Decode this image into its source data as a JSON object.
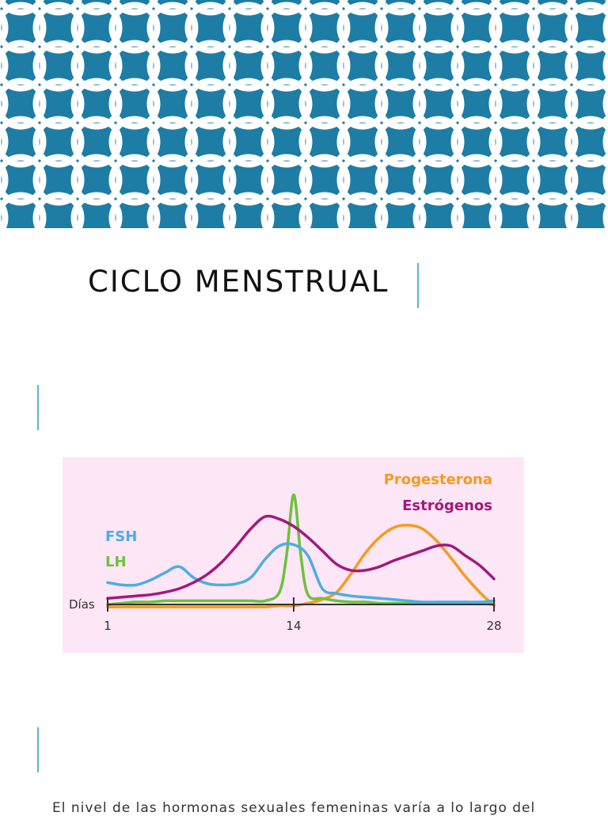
{
  "slide": {
    "title": "CICLO MENSTRUAL",
    "body_text": "El nivel de las hormonas sexuales femeninas varía a lo largo del"
  },
  "colors": {
    "banner": "#1d7da5",
    "pattern": "#ffffff",
    "accent_bar": "#5bb4d0",
    "chart_bg": "#fde6f5",
    "fsh": "#4aaee6",
    "lh": "#6cc23e",
    "progesterona": "#f79a1e",
    "estrogenos": "#a3197e"
  },
  "icons": {
    "banner": "interlocking-circles-pattern"
  },
  "chart_data": {
    "type": "line",
    "title": "",
    "xlabel": "Días",
    "ylabel": "",
    "xlim": [
      1,
      28
    ],
    "ylim": [
      0,
      100
    ],
    "grid": false,
    "legend": "labels placed next to curves",
    "x_ticks": [
      1,
      14,
      28
    ],
    "series": [
      {
        "name": "FSH",
        "color": "#4aaee6",
        "points": [
          [
            1,
            18
          ],
          [
            2,
            16
          ],
          [
            3,
            16
          ],
          [
            4,
            20
          ],
          [
            5,
            26
          ],
          [
            6,
            31
          ],
          [
            7,
            22
          ],
          [
            8,
            17
          ],
          [
            9,
            16
          ],
          [
            10,
            17
          ],
          [
            11,
            22
          ],
          [
            12,
            37
          ],
          [
            13,
            48
          ],
          [
            14,
            49
          ],
          [
            15,
            40
          ],
          [
            16,
            13
          ],
          [
            17,
            9
          ],
          [
            18,
            7
          ],
          [
            19,
            6
          ],
          [
            20,
            5
          ],
          [
            21,
            4
          ],
          [
            22,
            3
          ],
          [
            23,
            2
          ],
          [
            24,
            2
          ],
          [
            25,
            2
          ],
          [
            26,
            2
          ],
          [
            27,
            2
          ],
          [
            28,
            3
          ]
        ]
      },
      {
        "name": "LH",
        "color": "#6cc23e",
        "points": [
          [
            1,
            0
          ],
          [
            2,
            1
          ],
          [
            3,
            2
          ],
          [
            4,
            2
          ],
          [
            5,
            3
          ],
          [
            6,
            3
          ],
          [
            7,
            3
          ],
          [
            8,
            3
          ],
          [
            9,
            3
          ],
          [
            10,
            3
          ],
          [
            11,
            3
          ],
          [
            12,
            3
          ],
          [
            13,
            10
          ],
          [
            13.5,
            40
          ],
          [
            14,
            90
          ],
          [
            14.5,
            40
          ],
          [
            15,
            8
          ],
          [
            16,
            5
          ],
          [
            17,
            3
          ],
          [
            18,
            2
          ],
          [
            19,
            2
          ],
          [
            20,
            1
          ],
          [
            21,
            1
          ],
          [
            22,
            1
          ],
          [
            23,
            1
          ],
          [
            24,
            1
          ],
          [
            25,
            1
          ],
          [
            26,
            1
          ],
          [
            27,
            1
          ],
          [
            28,
            0
          ]
        ]
      },
      {
        "name": "Progesterona",
        "color": "#f79a1e",
        "points": [
          [
            1,
            -2
          ],
          [
            2,
            -2
          ],
          [
            3,
            -2
          ],
          [
            4,
            -2
          ],
          [
            5,
            -2
          ],
          [
            6,
            -2
          ],
          [
            7,
            -2
          ],
          [
            8,
            -2
          ],
          [
            9,
            -2
          ],
          [
            10,
            -2
          ],
          [
            11,
            -2
          ],
          [
            12,
            -2
          ],
          [
            13,
            -1
          ],
          [
            14,
            -1
          ],
          [
            15,
            1
          ],
          [
            16,
            4
          ],
          [
            17,
            10
          ],
          [
            18,
            25
          ],
          [
            19,
            42
          ],
          [
            20,
            55
          ],
          [
            21,
            63
          ],
          [
            22,
            65
          ],
          [
            23,
            62
          ],
          [
            24,
            52
          ],
          [
            25,
            38
          ],
          [
            26,
            23
          ],
          [
            27,
            10
          ],
          [
            28,
            -1
          ]
        ]
      },
      {
        "name": "Estrógenos",
        "color": "#a3197e",
        "points": [
          [
            1,
            5
          ],
          [
            2,
            6
          ],
          [
            3,
            7
          ],
          [
            4,
            8
          ],
          [
            5,
            10
          ],
          [
            6,
            13
          ],
          [
            7,
            18
          ],
          [
            8,
            25
          ],
          [
            9,
            35
          ],
          [
            10,
            48
          ],
          [
            11,
            62
          ],
          [
            12,
            72
          ],
          [
            13,
            70
          ],
          [
            14,
            64
          ],
          [
            15,
            55
          ],
          [
            16,
            44
          ],
          [
            17,
            33
          ],
          [
            18,
            28
          ],
          [
            19,
            28
          ],
          [
            20,
            31
          ],
          [
            21,
            36
          ],
          [
            22,
            40
          ],
          [
            23,
            44
          ],
          [
            24,
            48
          ],
          [
            25,
            48
          ],
          [
            26,
            40
          ],
          [
            27,
            32
          ],
          [
            28,
            21
          ]
        ]
      }
    ]
  }
}
